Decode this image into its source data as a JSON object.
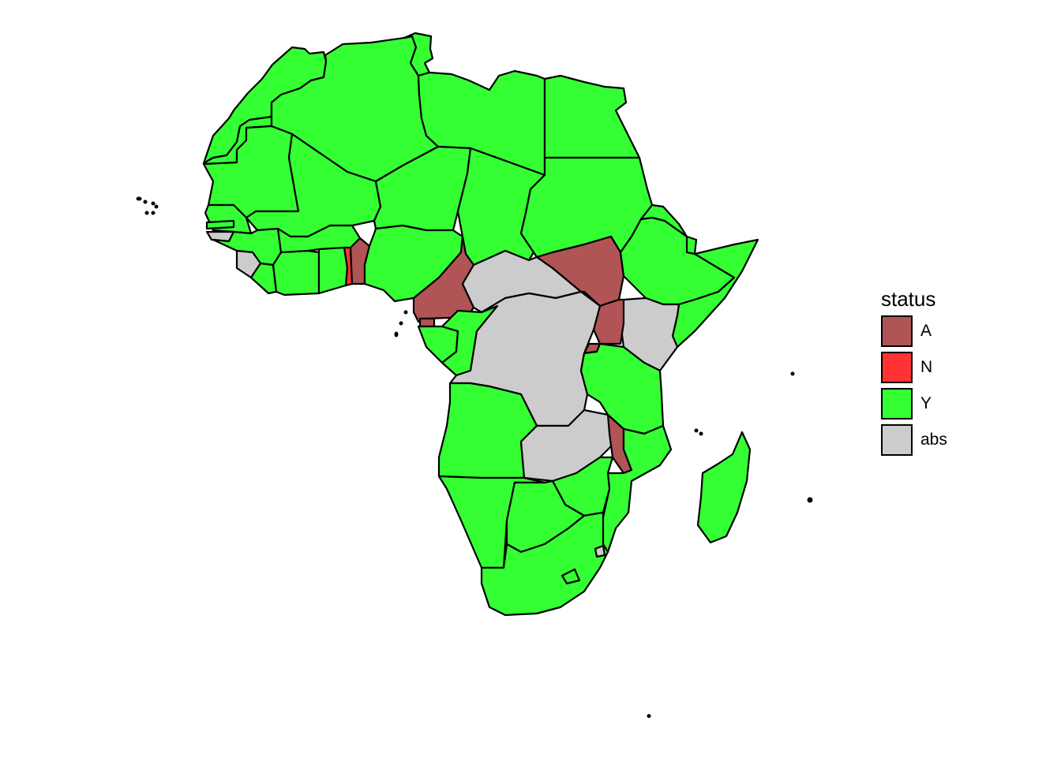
{
  "map": {
    "region": "Africa",
    "legend": {
      "title": "status",
      "items": [
        {
          "key": "A",
          "label": "A",
          "color": "#B05456"
        },
        {
          "key": "N",
          "label": "N",
          "color": "#FF3333"
        },
        {
          "key": "Y",
          "label": "Y",
          "color": "#33FF33"
        },
        {
          "key": "abs",
          "label": "abs",
          "color": "#CCCCCC"
        }
      ]
    },
    "regions": [
      {
        "name": "Morocco",
        "status": "Y"
      },
      {
        "name": "Western Sahara",
        "status": "Y"
      },
      {
        "name": "Algeria",
        "status": "Y"
      },
      {
        "name": "Tunisia",
        "status": "Y"
      },
      {
        "name": "Libya",
        "status": "Y"
      },
      {
        "name": "Egypt",
        "status": "Y"
      },
      {
        "name": "Mauritania",
        "status": "Y"
      },
      {
        "name": "Mali",
        "status": "Y"
      },
      {
        "name": "Niger",
        "status": "Y"
      },
      {
        "name": "Chad",
        "status": "Y"
      },
      {
        "name": "Sudan",
        "status": "Y"
      },
      {
        "name": "Senegal",
        "status": "Y"
      },
      {
        "name": "Gambia",
        "status": "Y"
      },
      {
        "name": "Guinea-Bissau",
        "status": "abs"
      },
      {
        "name": "Guinea",
        "status": "Y"
      },
      {
        "name": "Sierra Leone",
        "status": "abs"
      },
      {
        "name": "Liberia",
        "status": "Y"
      },
      {
        "name": "Cote d'Ivoire",
        "status": "Y"
      },
      {
        "name": "Burkina Faso",
        "status": "Y"
      },
      {
        "name": "Ghana",
        "status": "Y"
      },
      {
        "name": "Togo",
        "status": "N"
      },
      {
        "name": "Benin",
        "status": "A"
      },
      {
        "name": "Nigeria",
        "status": "Y"
      },
      {
        "name": "Cameroon",
        "status": "A"
      },
      {
        "name": "Central African Republic",
        "status": "abs"
      },
      {
        "name": "South Sudan",
        "status": "A"
      },
      {
        "name": "Ethiopia",
        "status": "Y"
      },
      {
        "name": "Eritrea",
        "status": "Y"
      },
      {
        "name": "Djibouti",
        "status": "Y"
      },
      {
        "name": "Somalia",
        "status": "Y"
      },
      {
        "name": "Kenya",
        "status": "abs"
      },
      {
        "name": "Uganda",
        "status": "A"
      },
      {
        "name": "Rwanda",
        "status": "A"
      },
      {
        "name": "Burundi",
        "status": "A"
      },
      {
        "name": "Equatorial Guinea",
        "status": "A"
      },
      {
        "name": "Gabon",
        "status": "Y"
      },
      {
        "name": "Republic of the Congo",
        "status": "Y"
      },
      {
        "name": "DR Congo",
        "status": "abs"
      },
      {
        "name": "Tanzania",
        "status": "Y"
      },
      {
        "name": "Angola",
        "status": "Y"
      },
      {
        "name": "Zambia",
        "status": "abs"
      },
      {
        "name": "Malawi",
        "status": "A"
      },
      {
        "name": "Mozambique",
        "status": "Y"
      },
      {
        "name": "Zimbabwe",
        "status": "Y"
      },
      {
        "name": "Namibia",
        "status": "Y"
      },
      {
        "name": "Botswana",
        "status": "Y"
      },
      {
        "name": "South Africa",
        "status": "Y"
      },
      {
        "name": "Lesotho",
        "status": "Y"
      },
      {
        "name": "Eswatini",
        "status": "abs"
      },
      {
        "name": "Madagascar",
        "status": "Y"
      }
    ]
  }
}
